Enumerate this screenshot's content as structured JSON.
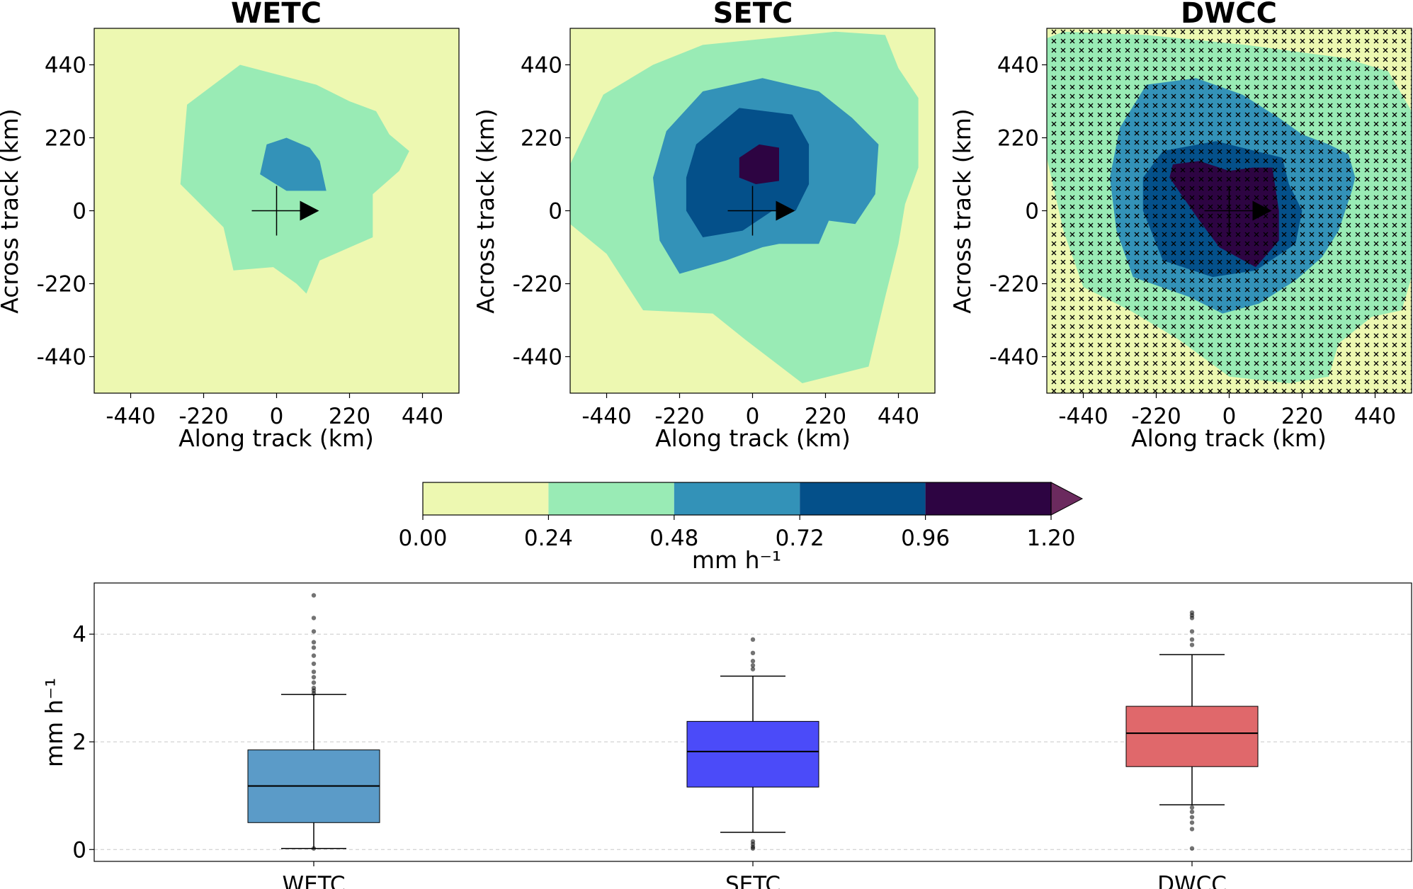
{
  "chart_data": [
    {
      "type": "heatmap",
      "title": "WETC",
      "xlabel": "Along track (km)",
      "ylabel": "Across track (km)",
      "xlim": [
        -550,
        550
      ],
      "ylim": [
        -550,
        550
      ],
      "xticks": [
        "-440",
        "-220",
        "0",
        "220",
        "440"
      ],
      "yticks": [
        "440",
        "220",
        "0",
        "-220",
        "-440"
      ],
      "hatched": false,
      "contours": [
        {
          "level": "0.24-0.48",
          "points": [
            [
              -160,
              -50
            ],
            [
              -130,
              -180
            ],
            [
              -10,
              -170
            ],
            [
              60,
              -220
            ],
            [
              90,
              -250
            ],
            [
              130,
              -150
            ],
            [
              290,
              -80
            ],
            [
              290,
              50
            ],
            [
              370,
              120
            ],
            [
              400,
              180
            ],
            [
              340,
              230
            ],
            [
              300,
              300
            ],
            [
              220,
              330
            ],
            [
              120,
              380
            ],
            [
              -110,
              440
            ],
            [
              -270,
              320
            ],
            [
              -290,
              80
            ],
            [
              -250,
              40
            ]
          ]
        },
        {
          "level": "0.48-0.72",
          "points": [
            [
              -50,
              110
            ],
            [
              30,
              60
            ],
            [
              150,
              60
            ],
            [
              130,
              150
            ],
            [
              100,
              190
            ],
            [
              30,
              220
            ],
            [
              -30,
              200
            ]
          ]
        }
      ]
    },
    {
      "type": "heatmap",
      "title": "SETC",
      "xlabel": "Along track (km)",
      "ylabel": "Across track (km)",
      "xlim": [
        -550,
        550
      ],
      "ylim": [
        -550,
        550
      ],
      "xticks": [
        "-440",
        "-220",
        "0",
        "220",
        "440"
      ],
      "yticks": [
        "440",
        "220",
        "0",
        "-220",
        "-440"
      ],
      "hatched": false,
      "contours": [
        {
          "level": "0.24-0.48",
          "points": [
            [
              -550,
              140
            ],
            [
              -550,
              -40
            ],
            [
              -440,
              -130
            ],
            [
              -330,
              -300
            ],
            [
              -120,
              -310
            ],
            [
              -20,
              -390
            ],
            [
              150,
              -520
            ],
            [
              350,
              -470
            ],
            [
              400,
              -260
            ],
            [
              440,
              -100
            ],
            [
              460,
              20
            ],
            [
              500,
              130
            ],
            [
              500,
              340
            ],
            [
              440,
              430
            ],
            [
              400,
              530
            ],
            [
              250,
              540
            ],
            [
              50,
              520
            ],
            [
              -150,
              500
            ],
            [
              -300,
              440
            ],
            [
              -450,
              350
            ]
          ]
        },
        {
          "level": "0.48-0.72",
          "points": [
            [
              -280,
              -90
            ],
            [
              -220,
              -190
            ],
            [
              -80,
              -150
            ],
            [
              30,
              -110
            ],
            [
              80,
              -100
            ],
            [
              200,
              -100
            ],
            [
              230,
              -30
            ],
            [
              310,
              -40
            ],
            [
              370,
              50
            ],
            [
              380,
              200
            ],
            [
              300,
              280
            ],
            [
              200,
              360
            ],
            [
              30,
              400
            ],
            [
              -150,
              360
            ],
            [
              -260,
              240
            ],
            [
              -300,
              100
            ]
          ]
        },
        {
          "level": "0.72-0.96",
          "points": [
            [
              -200,
              0
            ],
            [
              -150,
              -80
            ],
            [
              -30,
              -60
            ],
            [
              60,
              0
            ],
            [
              130,
              0
            ],
            [
              170,
              80
            ],
            [
              170,
              200
            ],
            [
              120,
              290
            ],
            [
              -40,
              310
            ],
            [
              -170,
              200
            ],
            [
              -200,
              100
            ]
          ]
        },
        {
          "level": "0.96-1.20",
          "points": [
            [
              -40,
              100
            ],
            [
              10,
              80
            ],
            [
              80,
              90
            ],
            [
              80,
              190
            ],
            [
              20,
              200
            ],
            [
              -40,
              160
            ]
          ]
        }
      ]
    },
    {
      "type": "heatmap",
      "title": "DWCC",
      "xlabel": "Along track (km)",
      "ylabel": "Across track (km)",
      "xlim": [
        -550,
        550
      ],
      "ylim": [
        -550,
        550
      ],
      "xticks": [
        "-440",
        "-220",
        "0",
        "220",
        "440"
      ],
      "yticks": [
        "440",
        "220",
        "0",
        "-220",
        "-440"
      ],
      "hatched": true,
      "contours": [
        {
          "level": "0.24-0.48",
          "points": [
            [
              -550,
              160
            ],
            [
              -500,
              -60
            ],
            [
              -440,
              -230
            ],
            [
              -300,
              -300
            ],
            [
              -150,
              -390
            ],
            [
              0,
              -500
            ],
            [
              180,
              -520
            ],
            [
              300,
              -500
            ],
            [
              330,
              -400
            ],
            [
              430,
              -320
            ],
            [
              520,
              -300
            ],
            [
              550,
              -200
            ],
            [
              550,
              300
            ],
            [
              480,
              420
            ],
            [
              350,
              460
            ],
            [
              200,
              480
            ],
            [
              50,
              500
            ],
            [
              -250,
              530
            ],
            [
              -500,
              540
            ],
            [
              -550,
              520
            ]
          ]
        },
        {
          "level": "0.48-0.72",
          "points": [
            [
              -340,
              -60
            ],
            [
              -290,
              -200
            ],
            [
              -120,
              -260
            ],
            [
              -20,
              -310
            ],
            [
              90,
              -280
            ],
            [
              200,
              -210
            ],
            [
              280,
              -140
            ],
            [
              330,
              -60
            ],
            [
              370,
              60
            ],
            [
              380,
              100
            ],
            [
              360,
              170
            ],
            [
              300,
              200
            ],
            [
              220,
              230
            ],
            [
              150,
              280
            ],
            [
              40,
              350
            ],
            [
              -100,
              400
            ],
            [
              -250,
              380
            ],
            [
              -330,
              250
            ],
            [
              -360,
              100
            ]
          ]
        },
        {
          "level": "0.72-0.96",
          "points": [
            [
              -260,
              0
            ],
            [
              -200,
              -150
            ],
            [
              -50,
              -200
            ],
            [
              80,
              -180
            ],
            [
              200,
              -100
            ],
            [
              220,
              0
            ],
            [
              180,
              80
            ],
            [
              160,
              160
            ],
            [
              -40,
              210
            ],
            [
              -200,
              180
            ],
            [
              -260,
              100
            ]
          ]
        },
        {
          "level": "0.96-1.20",
          "points": [
            [
              -180,
              100
            ],
            [
              -90,
              -30
            ],
            [
              -30,
              -110
            ],
            [
              80,
              -170
            ],
            [
              150,
              -90
            ],
            [
              150,
              0
            ],
            [
              130,
              130
            ],
            [
              70,
              130
            ],
            [
              0,
              120
            ],
            [
              -90,
              150
            ],
            [
              -170,
              140
            ]
          ]
        }
      ]
    },
    {
      "type": "colorbar",
      "label": "mm h⁻¹",
      "bounds": [
        "0.00",
        "0.24",
        "0.48",
        "0.72",
        "0.96",
        "1.20"
      ],
      "colors": [
        "#edf8b1",
        "#99ebb5",
        "#3392b8",
        "#04508a",
        "#2d0442"
      ],
      "extend_color": "#6b2a5e"
    },
    {
      "type": "box",
      "ylabel": "mm h⁻¹",
      "categories": [
        "WETC",
        "SETC",
        "DWCC"
      ],
      "ylim": [
        -0.22,
        4.95
      ],
      "yticks": [
        "0",
        "2",
        "4"
      ],
      "grid": "horizontal dashed",
      "series": [
        {
          "name": "WETC",
          "color": "#5b9bc8",
          "q1": 0.5,
          "median": 1.18,
          "q3": 1.85,
          "whisker_low": 0.02,
          "whisker_high": 2.88,
          "outliers": [
            0.02,
            2.9,
            2.95,
            3.0,
            3.1,
            3.2,
            3.3,
            3.45,
            3.6,
            3.75,
            3.85,
            4.05,
            4.3,
            4.72
          ]
        },
        {
          "name": "SETC",
          "color": "#4b4bf9",
          "q1": 1.16,
          "median": 1.82,
          "q3": 2.38,
          "whisker_low": 0.32,
          "whisker_high": 3.22,
          "outliers": [
            0.02,
            0.05,
            0.1,
            0.15,
            3.35,
            3.42,
            3.5,
            3.65,
            3.9
          ]
        },
        {
          "name": "DWCC",
          "color": "#e0686b",
          "q1": 1.54,
          "median": 2.16,
          "q3": 2.66,
          "whisker_low": 0.83,
          "whisker_high": 3.62,
          "outliers": [
            0.02,
            0.38,
            0.5,
            0.6,
            0.7,
            0.78,
            3.8,
            3.9,
            4.05,
            4.3,
            4.35,
            4.4
          ]
        }
      ]
    }
  ]
}
